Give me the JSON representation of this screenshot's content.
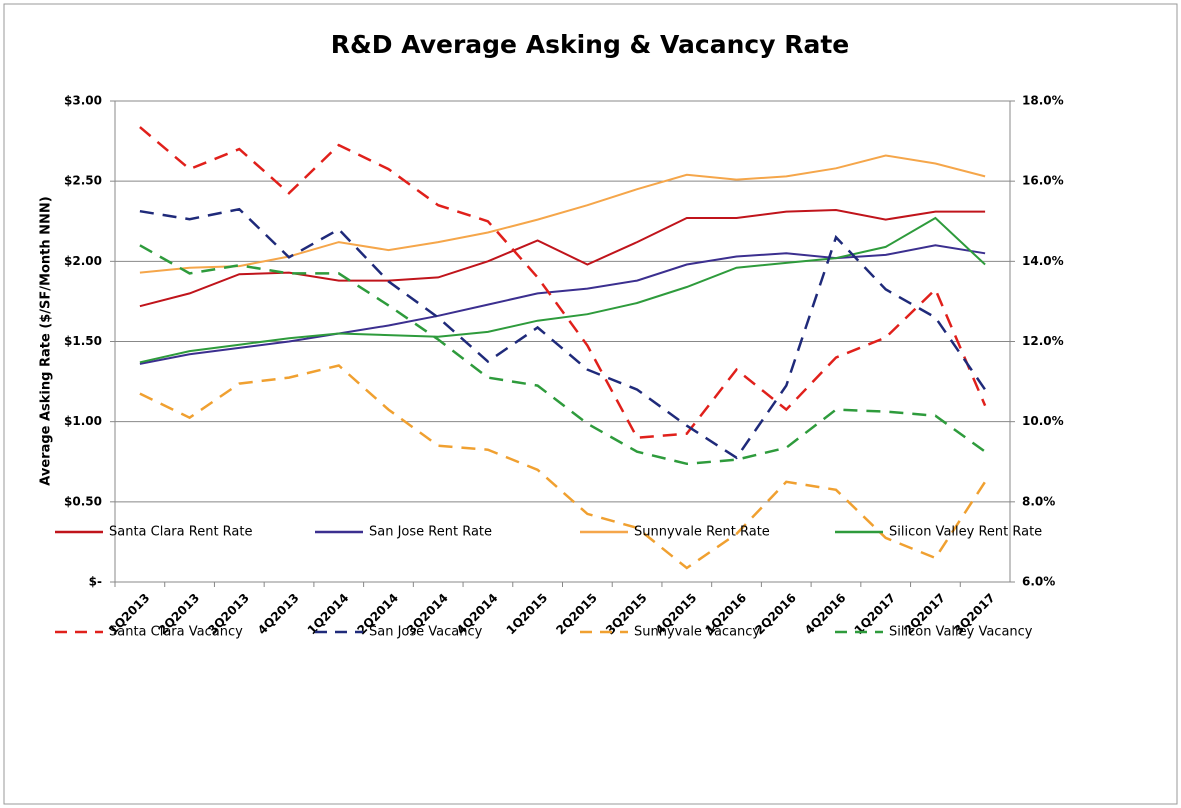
{
  "chart_data": {
    "type": "line",
    "title": "R&D Average Asking & Vacancy Rate",
    "y_label": "Average Asking Rate ($/SF/Month NNN)",
    "categories": [
      "1Q2013",
      "2Q2013",
      "3Q2013",
      "4Q2013",
      "1Q2014",
      "2Q2014",
      "3Q2014",
      "4Q2014",
      "1Q2015",
      "2Q2015",
      "3Q2015",
      "4Q2015",
      "1Q2016",
      "2Q2016",
      "4Q2016",
      "1Q2017",
      "2Q2017",
      "3Q2017"
    ],
    "ylim": [
      0,
      3
    ],
    "yticks": [
      {
        "value": 0,
        "label": "$-"
      },
      {
        "value": 0.5,
        "label": "$0.50"
      },
      {
        "value": 1,
        "label": "$1.00"
      },
      {
        "value": 1.5,
        "label": "$1.50"
      },
      {
        "value": 2,
        "label": "$2.00"
      },
      {
        "value": 2.5,
        "label": "$2.50"
      },
      {
        "value": 3,
        "label": "$3.00"
      }
    ],
    "y2lim": [
      6,
      18
    ],
    "y2ticks": [
      {
        "value": 6,
        "label": "6.0%"
      },
      {
        "value": 8,
        "label": "8.0%"
      },
      {
        "value": 10,
        "label": "10.0%"
      },
      {
        "value": 12,
        "label": "12.0%"
      },
      {
        "value": 14,
        "label": "14.0%"
      },
      {
        "value": 16,
        "label": "16.0%"
      },
      {
        "value": 18,
        "label": "18.0%"
      }
    ],
    "grid": true,
    "legend": "bottom",
    "series": [
      {
        "name": "Santa Clara Rent Rate",
        "color": "#c0141b",
        "dashed": false,
        "values": [
          1.72,
          1.8,
          1.92,
          1.93,
          1.88,
          1.88,
          1.9,
          2.0,
          2.13,
          1.98,
          2.12,
          2.27,
          2.27,
          2.31,
          2.32,
          2.26,
          2.31,
          2.31
        ]
      },
      {
        "name": "San Jose Rent Rate",
        "color": "#3b2f8f",
        "dashed": false,
        "values": [
          1.36,
          1.42,
          1.46,
          1.5,
          1.55,
          1.6,
          1.66,
          1.73,
          1.8,
          1.83,
          1.88,
          1.98,
          2.03,
          2.05,
          2.02,
          2.04,
          2.1,
          2.05
        ]
      },
      {
        "name": "Sunnyvale Rent Rate",
        "color": "#f5a64a",
        "dashed": false,
        "values": [
          1.93,
          1.96,
          1.97,
          2.03,
          2.12,
          2.07,
          2.12,
          2.18,
          2.26,
          2.35,
          2.45,
          2.54,
          2.51,
          2.53,
          2.58,
          2.66,
          2.61,
          2.53
        ]
      },
      {
        "name": "Silicon Valley Rent Rate",
        "color": "#2e9b3c",
        "dashed": false,
        "values": [
          1.37,
          1.44,
          1.48,
          1.52,
          1.55,
          1.54,
          1.53,
          1.56,
          1.63,
          1.67,
          1.74,
          1.84,
          1.96,
          1.99,
          2.02,
          2.09,
          2.27,
          1.98
        ]
      },
      {
        "name": "Santa Clara Vacancy",
        "color": "#e0201b",
        "dashed": true,
        "axis": "y2",
        "values": [
          17.35,
          16.3,
          16.8,
          15.7,
          16.9,
          16.3,
          15.4,
          15.0,
          13.6,
          11.9,
          9.6,
          9.7,
          11.3,
          10.3,
          11.6,
          12.1,
          13.3,
          10.4
        ]
      },
      {
        "name": "San Jose Vacancy",
        "color": "#1f2a7a",
        "dashed": true,
        "axis": "y2",
        "values": [
          15.25,
          15.05,
          15.3,
          14.1,
          14.8,
          13.5,
          12.6,
          11.5,
          12.35,
          11.3,
          10.8,
          9.9,
          9.1,
          10.9,
          14.6,
          13.3,
          12.6,
          10.8
        ]
      },
      {
        "name": "Sunnyvale Vacancy",
        "color": "#f0a030",
        "dashed": true,
        "axis": "y2",
        "values": [
          10.7,
          10.1,
          10.95,
          11.1,
          11.4,
          10.3,
          9.4,
          9.3,
          8.8,
          7.7,
          7.35,
          6.35,
          7.2,
          8.5,
          8.3,
          7.1,
          6.6,
          8.5
        ]
      },
      {
        "name": "Silicon Valley Vacancy",
        "color": "#2e9b3c",
        "dashed": true,
        "axis": "y2",
        "values": [
          14.4,
          13.7,
          13.9,
          13.7,
          13.7,
          12.9,
          12.05,
          11.1,
          10.9,
          9.95,
          9.25,
          8.95,
          9.05,
          9.35,
          10.3,
          10.25,
          10.15,
          9.25
        ]
      }
    ]
  }
}
